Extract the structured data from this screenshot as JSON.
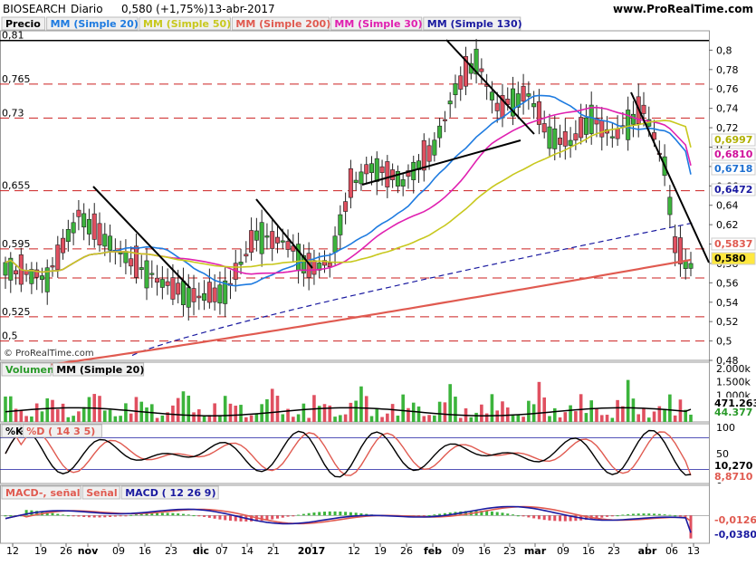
{
  "header": {
    "symbol": "BIOSEARCH",
    "period": "Diario",
    "last": "0,580 (+1,75%)",
    "date": "13-abr-2017",
    "site": "www.ProRealTime.com",
    "copyright": "© ProRealTime.com"
  },
  "price_panel": {
    "legend": [
      {
        "label": "Precio",
        "color": "#000000"
      },
      {
        "label": "MM (Simple 20)",
        "color": "#1e7be0"
      },
      {
        "label": "MM (Simple 50)",
        "color": "#c8c81e"
      },
      {
        "label": "MM (Simple 200)",
        "color": "#e05a50"
      },
      {
        "label": "MM (Simple 30)",
        "color": "#e020b0"
      },
      {
        "label": "MM (Simple 130)",
        "color": "#1a1aa0"
      }
    ],
    "left_levels": [
      "0,81",
      "0,765",
      "0,73",
      "0,655",
      "0,595",
      "0,525",
      "0,5"
    ],
    "level_values": [
      0.81,
      0.765,
      0.73,
      0.655,
      0.595,
      0.565,
      0.525,
      0.5
    ],
    "right_ticks": [
      "0,8",
      "0,78",
      "0,76",
      "0,74",
      "0,72",
      "0,7",
      "0,68",
      "0,66",
      "0,64",
      "0,62",
      "0,6",
      "0,58",
      "0,56",
      "0,54",
      "0,52",
      "0,5",
      "0,48"
    ],
    "right_labels": [
      {
        "text": "0,6997",
        "color": "#b0b000",
        "bg": "#ffffff"
      },
      {
        "text": "0,6810",
        "color": "#d0109a",
        "bg": "#ffffff"
      },
      {
        "text": "0,6718",
        "color": "#1e6fd0",
        "bg": "#ffffff"
      },
      {
        "text": "0,6472",
        "color": "#1a1aa0",
        "bg": "#ffffff"
      },
      {
        "text": "0,5837",
        "color": "#e05a50",
        "bg": "#ffffff"
      },
      {
        "text": "0,580",
        "color": "#000000",
        "bg": "#ffe840"
      }
    ]
  },
  "volume_panel": {
    "legend": [
      {
        "label": "Volumen",
        "color": "#2a9a2a"
      },
      {
        "label": "MM (Simple 20)",
        "color": "#000000"
      }
    ],
    "right_ticks": [
      "2.000k",
      "1.500k",
      "1.000k",
      "500k"
    ],
    "right_labels": [
      {
        "text": "471.263",
        "color": "#000000",
        "bg": "#ffffff"
      },
      {
        "text": "44.377",
        "color": "#2a9a2a",
        "bg": "#ffffff"
      }
    ]
  },
  "stoch_panel": {
    "legend": [
      {
        "label": "%K",
        "color": "#000000"
      },
      {
        "label": "%D ( 14 3 5)",
        "color": "#e05a50"
      }
    ],
    "right_ticks": [
      "100",
      "50",
      "0"
    ],
    "right_labels": [
      {
        "text": "10,270",
        "color": "#000000",
        "bg": "#ffffff"
      },
      {
        "text": "8,8710",
        "color": "#e05a50",
        "bg": "#ffffff"
      }
    ]
  },
  "macd_panel": {
    "legend": [
      {
        "label": "MACD-, señal",
        "color": "#e05a50"
      },
      {
        "label": "Señal",
        "color": "#e05a50"
      },
      {
        "label": "MACD ( 12 26 9)",
        "color": "#1a1aa0"
      }
    ],
    "right_labels": [
      {
        "text": "-0,0126",
        "color": "#e05a50",
        "bg": "#ffffff"
      },
      {
        "text": "-0,0380",
        "color": "#1a1aa0",
        "bg": "#ffffff"
      }
    ]
  },
  "x_axis": [
    "12",
    "19",
    "26",
    "nov",
    "09",
    "16",
    "23",
    "dic",
    "07",
    "14",
    "21",
    "2017",
    "12",
    "19",
    "26",
    "feb",
    "09",
    "16",
    "23",
    "mar",
    "09",
    "16",
    "23",
    "abr",
    "06",
    "13"
  ],
  "chart_data": {
    "type": "candlestick",
    "frequency": "daily",
    "last_close": 0.58,
    "ylim": [
      0.48,
      0.82
    ],
    "volume_ylim": [
      0,
      2100000
    ],
    "stoch_ylim": [
      0,
      100
    ],
    "key_points": [
      {
        "date": "13-abr-2017",
        "close": 0.58,
        "change_pct": 1.75
      }
    ],
    "indicators_last": {
      "sma20": 0.6718,
      "sma30": 0.681,
      "sma50": 0.6997,
      "sma130": 0.6472,
      "sma200": 0.5837,
      "volume": 44377,
      "volume_sma20": 471263,
      "stoch_k": 10.27,
      "stoch_d": 8.871,
      "macd_signal": -0.0126,
      "macd": -0.038
    },
    "horizontal_levels": [
      0.81,
      0.765,
      0.73,
      0.655,
      0.595,
      0.565,
      0.525,
      0.5
    ]
  },
  "colors": {
    "up": "#3cb43c",
    "down": "#e05060",
    "level_line": "#cc2020",
    "grid": "#d8d8d8"
  }
}
